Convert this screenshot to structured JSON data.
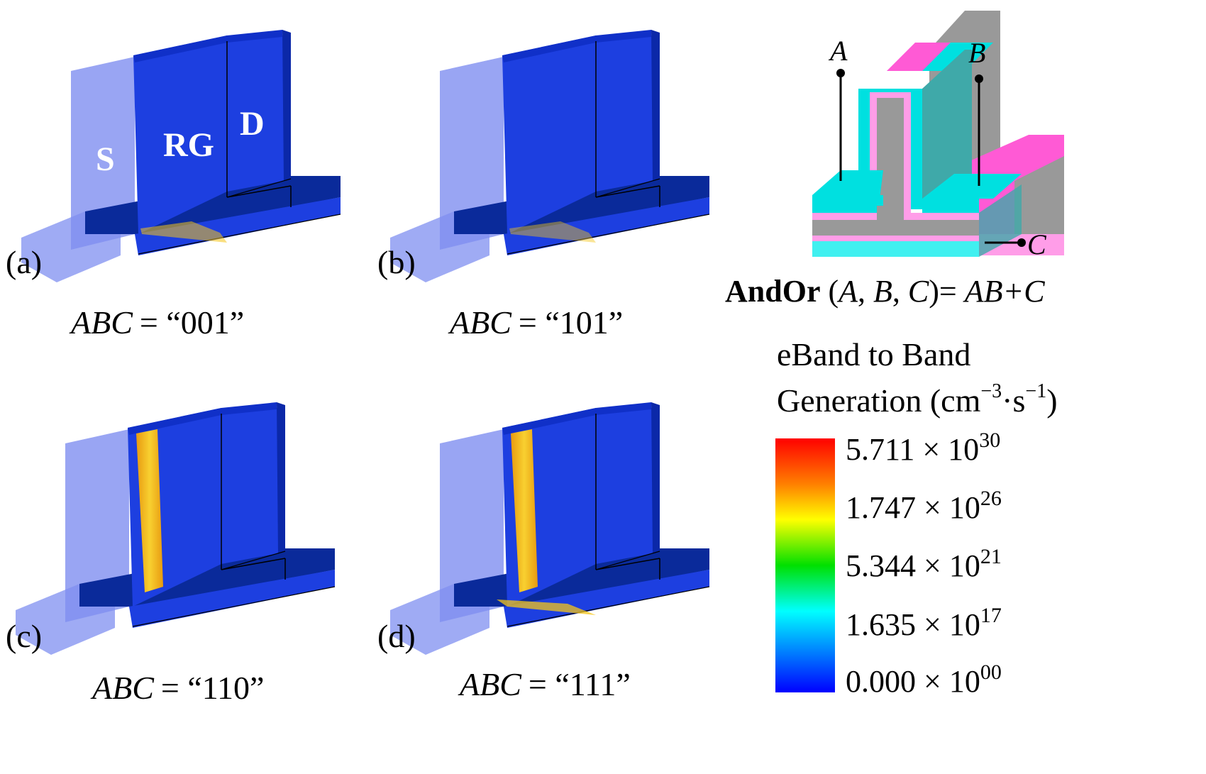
{
  "panels": [
    {
      "id": "a",
      "label": "(a)",
      "abc_prefix": "ABC",
      "abc_value": "= “001”",
      "hot_channel": false,
      "hot_bottom": "weak"
    },
    {
      "id": "b",
      "label": "(b)",
      "abc_prefix": "ABC",
      "abc_value": "= “101”",
      "hot_channel": false,
      "hot_bottom": "weak"
    },
    {
      "id": "c",
      "label": "(c)",
      "abc_prefix": "ABC",
      "abc_value": "= “110”",
      "hot_channel": true,
      "hot_bottom": "none"
    },
    {
      "id": "d",
      "label": "(d)",
      "abc_prefix": "ABC",
      "abc_value": "= “111”",
      "hot_channel": true,
      "hot_bottom": "strong"
    }
  ],
  "gate_labels": {
    "source": "S",
    "reconfig_gate": "RG",
    "drain": "D"
  },
  "device": {
    "terminals": {
      "a": "A",
      "b": "B",
      "c": "C"
    },
    "function_bold": "AndOr",
    "function_rest_1": " (",
    "arg_a": "A",
    "sep1": ", ",
    "arg_b": "B",
    "sep2": ", ",
    "arg_c": "C",
    "function_rest_2": ")= ",
    "expr": "AB+C",
    "colors": {
      "silicon": "#999999",
      "oxide": "#ff9de8",
      "gate_metal": "#00e0e0",
      "pink_gate": "#ff5ad5"
    }
  },
  "legend": {
    "title_line1": "eBand to Band",
    "title_line2_base": "Generation (cm",
    "title_sup1": "−3",
    "title_mid": "·s",
    "title_sup2": "−1",
    "title_end": ")",
    "ticks": [
      {
        "mantissa": "5.711 × 10",
        "exp": "30"
      },
      {
        "mantissa": "1.747 × 10",
        "exp": "26"
      },
      {
        "mantissa": "5.344 × 10",
        "exp": "21"
      },
      {
        "mantissa": "1.635 × 10",
        "exp": "17"
      },
      {
        "mantissa": "0.000 × 10",
        "exp": "00"
      }
    ],
    "colormap": [
      "#ff0000",
      "#ff8000",
      "#ffff00",
      "#00e000",
      "#00ffff",
      "#0080ff",
      "#0000ff"
    ]
  },
  "colors": {
    "device_blue": "#1d3fe0",
    "device_dark": "#0a2a9a",
    "ghost": "#7f8ff0",
    "hot": "#f5c518"
  }
}
